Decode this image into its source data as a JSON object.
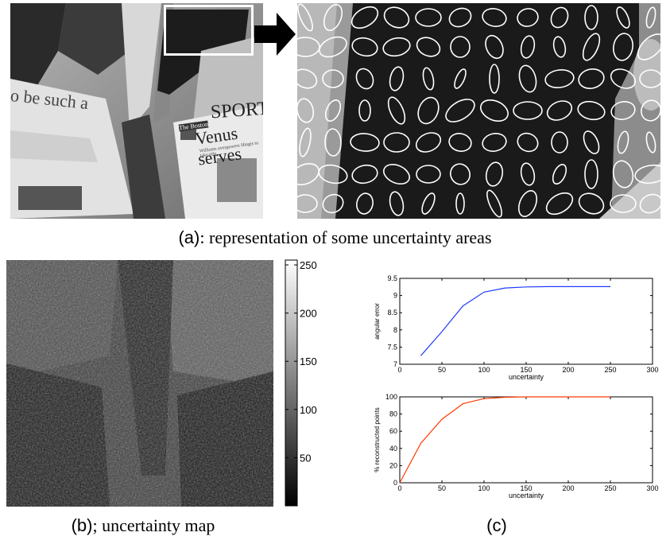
{
  "panel_a": {
    "scene_text": {
      "headline_left": "o be such a",
      "sports": "SPORT",
      "venus": "Venus serves",
      "masthead": "The Boston",
      "small_print": "Williams overpowers Hingis to take title"
    },
    "caption_lead": "(a)",
    "caption_rest": ": representation of some uncertainty areas"
  },
  "panel_b": {
    "colorbar_ticks": [
      "250",
      "200",
      "150",
      "100",
      "50"
    ],
    "colorbar_range": [
      0,
      255
    ],
    "caption_lead": "(b)",
    "caption_rest": "; uncertainty map"
  },
  "panel_c": {
    "caption": "(c)"
  },
  "chart_data": [
    {
      "type": "line",
      "title": "",
      "xlabel": "uncertainty",
      "ylabel": "angular error",
      "xlim": [
        0,
        300
      ],
      "ylim": [
        7,
        9.5
      ],
      "xticks": [
        "0",
        "50",
        "100",
        "150",
        "200",
        "250",
        "300"
      ],
      "yticks": [
        "7",
        "7.5",
        "8",
        "8.5",
        "9",
        "9.5"
      ],
      "x": [
        25,
        50,
        75,
        100,
        125,
        150,
        175,
        200,
        225,
        250
      ],
      "series": [
        {
          "color": "#1f3cff",
          "values": [
            7.25,
            7.95,
            8.7,
            9.1,
            9.22,
            9.25,
            9.26,
            9.26,
            9.26,
            9.26
          ]
        }
      ],
      "grid": false
    },
    {
      "type": "line",
      "title": "",
      "xlabel": "uncertainty",
      "ylabel": "% reconstructed points",
      "xlim": [
        0,
        300
      ],
      "ylim": [
        0,
        100
      ],
      "xticks": [
        "0",
        "50",
        "100",
        "150",
        "200",
        "250",
        "300"
      ],
      "yticks": [
        "0",
        "20",
        "40",
        "60",
        "80",
        "100"
      ],
      "x": [
        0,
        25,
        50,
        75,
        100,
        125,
        150,
        175,
        200,
        225,
        250
      ],
      "series": [
        {
          "color": "#ff3b00",
          "values": [
            0,
            46,
            74,
            92,
            98,
            99.5,
            100,
            100,
            100,
            100,
            100
          ]
        }
      ],
      "grid": false
    }
  ]
}
